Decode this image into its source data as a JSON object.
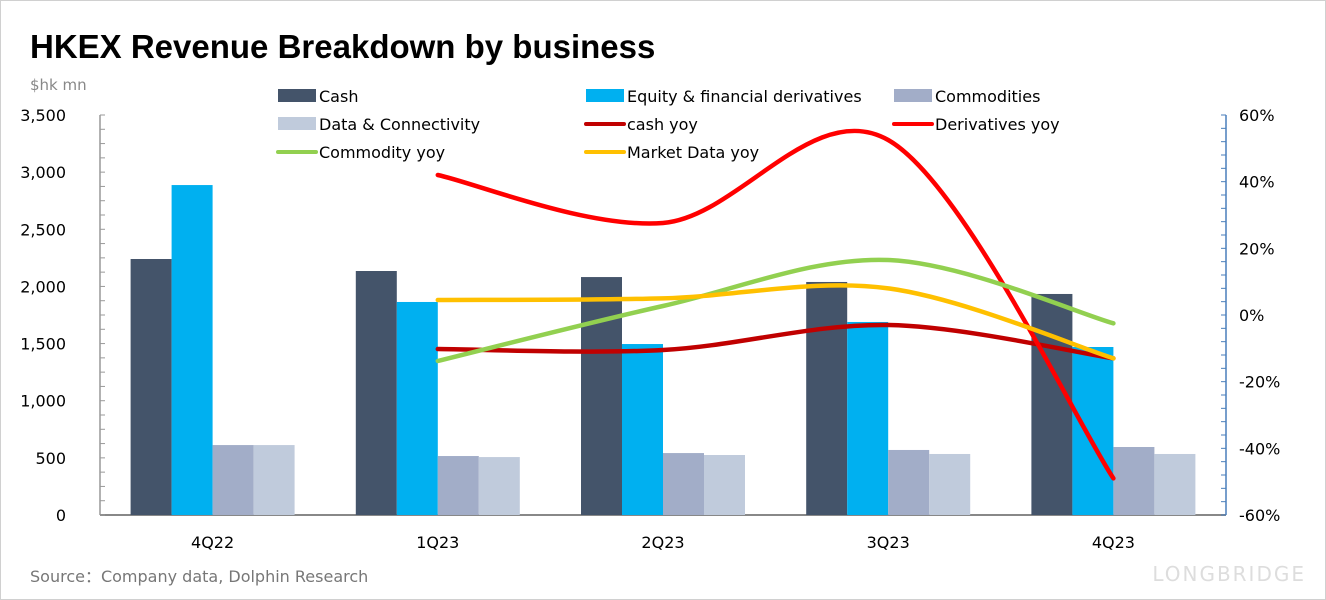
{
  "chart_data": {
    "type": "bar",
    "title": "HKEX Revenue Breakdown by business",
    "ylabel": "$hk mn",
    "ylabel_right": "",
    "xlabel": "",
    "categories": [
      "4Q22",
      "1Q23",
      "2Q23",
      "3Q23",
      "4Q23"
    ],
    "ylim": [
      0,
      3500
    ],
    "yticks": [
      "0",
      "500",
      "1,000",
      "1,500",
      "2,000",
      "2,500",
      "3,000",
      "3,500"
    ],
    "ylim_right": [
      -60,
      60
    ],
    "yticks_right": [
      "-60%",
      "-40%",
      "-20%",
      "0%",
      "20%",
      "40%",
      "60%"
    ],
    "bar_series": [
      {
        "name": "Cash",
        "color": "#44546a",
        "values": [
          2240,
          2135,
          2082,
          2039,
          1934
        ]
      },
      {
        "name": "Equity & financial derivatives",
        "color": "#00b0f0",
        "values": [
          2887,
          1864,
          1496,
          1689,
          1470
        ]
      },
      {
        "name": "Commodities",
        "color": "#a2adc8",
        "values": [
          612,
          516,
          542,
          569,
          595
        ]
      },
      {
        "name": "Data & Connectivity",
        "color": "#c0cbdc",
        "values": [
          612,
          507,
          525,
          534,
          534
        ]
      }
    ],
    "line_series": [
      {
        "name": "cash yoy",
        "color": "#c00000",
        "values": [
          null,
          -10.2,
          -10.5,
          -3.0,
          -13.0
        ]
      },
      {
        "name": "Derivatives yoy",
        "color": "#ff0000",
        "values": [
          null,
          42.0,
          27.6,
          52.5,
          -49.0
        ]
      },
      {
        "name": "Commodity yoy",
        "color": "#92d050",
        "values": [
          null,
          -13.8,
          2.7,
          16.5,
          -2.5
        ]
      },
      {
        "name": "Market Data yoy",
        "color": "#ffc000",
        "values": [
          null,
          4.5,
          5.0,
          8.0,
          -13.0
        ]
      }
    ],
    "legend": [
      "Cash",
      "Equity & financial derivatives",
      "Commodities",
      "Data & Connectivity",
      "cash yoy",
      "Derivatives yoy",
      "Commodity yoy",
      "Market Data yoy"
    ],
    "legend_position": "top",
    "grid": false
  },
  "source": "Source：Company data, Dolphin Research",
  "brand": "LONGBRIDGE"
}
